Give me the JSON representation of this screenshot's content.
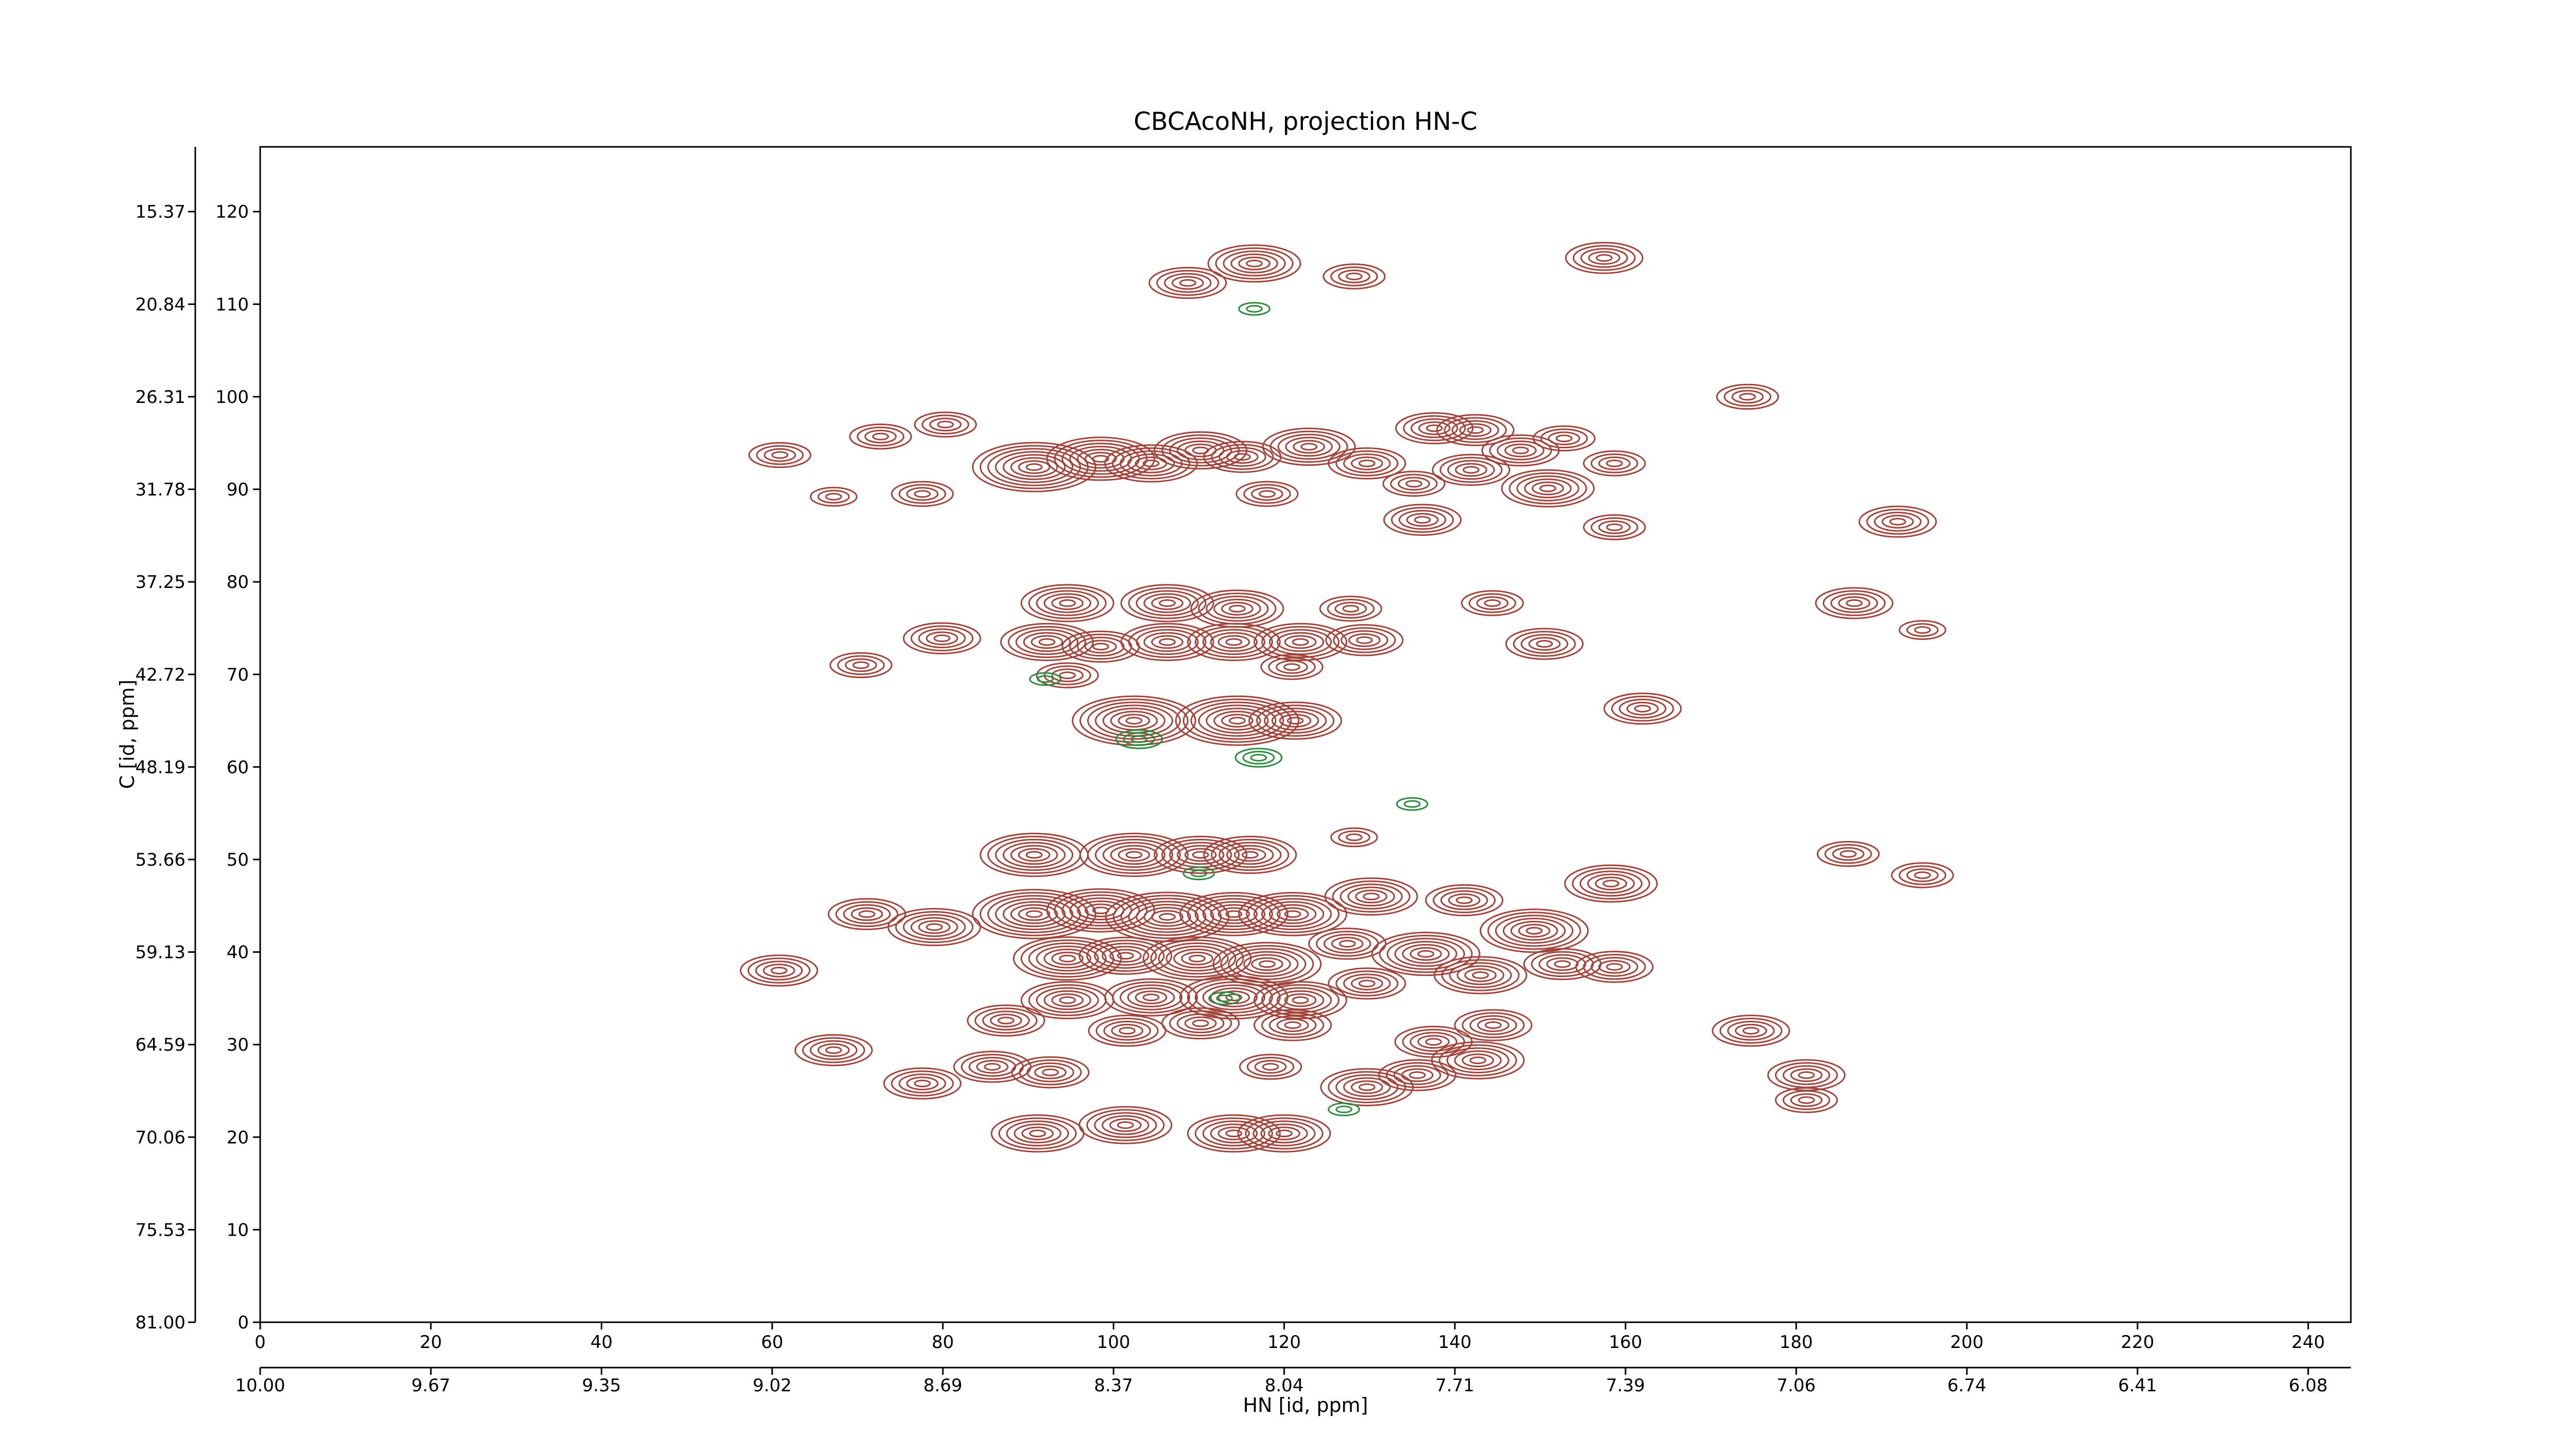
{
  "chart_data": {
    "type": "contour",
    "title": "CBCAcoNH, projection HN-C",
    "xlabel": "HN [id, ppm]",
    "ylabel": "C [id, ppm]",
    "xlim": [
      0,
      245
    ],
    "ylim": [
      0,
      127
    ],
    "xticks": [
      0,
      20,
      40,
      60,
      80,
      100,
      120,
      140,
      160,
      180,
      200,
      220,
      240
    ],
    "yticks": [
      0,
      10,
      20,
      30,
      40,
      50,
      60,
      70,
      80,
      90,
      100,
      110,
      120
    ],
    "x2ticks": [
      {
        "value": 0,
        "label": "10.00"
      },
      {
        "value": 20,
        "label": "9.67"
      },
      {
        "value": 40,
        "label": "9.35"
      },
      {
        "value": 60,
        "label": "9.02"
      },
      {
        "value": 80,
        "label": "8.69"
      },
      {
        "value": 100,
        "label": "8.37"
      },
      {
        "value": 120,
        "label": "8.04"
      },
      {
        "value": 140,
        "label": "7.71"
      },
      {
        "value": 160,
        "label": "7.39"
      },
      {
        "value": 180,
        "label": "7.06"
      },
      {
        "value": 200,
        "label": "6.74"
      },
      {
        "value": 220,
        "label": "6.41"
      },
      {
        "value": 240,
        "label": "6.08"
      }
    ],
    "y2ticks": [
      {
        "value": 0,
        "label": "81.00"
      },
      {
        "value": 10,
        "label": "75.53"
      },
      {
        "value": 20,
        "label": "70.06"
      },
      {
        "value": 30,
        "label": "64.59"
      },
      {
        "value": 40,
        "label": "59.13"
      },
      {
        "value": 50,
        "label": "53.66"
      },
      {
        "value": 60,
        "label": "48.19"
      },
      {
        "value": 70,
        "label": "42.72"
      },
      {
        "value": 80,
        "label": "37.25"
      },
      {
        "value": 90,
        "label": "31.78"
      },
      {
        "value": 100,
        "label": "26.31"
      },
      {
        "value": 110,
        "label": "20.84"
      },
      {
        "value": 120,
        "label": "15.37"
      }
    ],
    "series": [
      {
        "color": "#a0443c",
        "x": [
          108.7,
          116.5,
          128.2,
          157.5,
          174.3,
          80.3,
          72.7,
          60.9,
          67.2,
          77.6,
          90.7,
          98.5,
          104.4,
          110.2,
          115.1,
          122.9,
          118,
          129.7,
          135.2,
          137.6,
          142.4,
          141.9,
          147.7,
          152.8,
          150.9,
          158.7,
          158.7,
          136.2,
          191.9,
          186.8,
          194.8,
          94.6,
          106.3,
          114.5,
          127.8,
          144.4,
          79.9,
          92.2,
          98.5,
          106.3,
          114.1,
          121.9,
          129.4,
          150.5,
          70.4,
          94.6,
          120.9,
          102.4,
          114.5,
          121.3,
          162,
          90.7,
          102.4,
          110.2,
          116,
          128.2,
          71.1,
          79,
          90.7,
          98.5,
          106.3,
          114.1,
          121,
          130.2,
          141.1,
          149.3,
          158.3,
          60.8,
          94.6,
          101.4,
          109.8,
          118,
          127.4,
          136.6,
          143,
          152.6,
          158.7,
          94.6,
          104.4,
          114.1,
          121.9,
          129.7,
          87.4,
          101.6,
          110.2,
          121,
          137.5,
          144.5,
          67.2,
          85.8,
          92.6,
          118.4,
          142.7,
          174.7,
          181.2,
          181.2,
          77.6,
          129.7,
          135.6,
          91.1,
          101.4,
          114.1,
          120,
          186.1,
          194.8
        ],
        "values": [
          112.3,
          114.4,
          113,
          115,
          100,
          97,
          95.7,
          93.7,
          89.2,
          89.5,
          92.4,
          93.3,
          92.8,
          94.2,
          93.5,
          94.6,
          89.5,
          92.8,
          90.6,
          96.6,
          96.4,
          92.1,
          94.2,
          95.5,
          90.1,
          92.8,
          85.9,
          86.7,
          86.5,
          77.7,
          74.8,
          77.7,
          77.7,
          77.1,
          77.1,
          77.7,
          73.9,
          73.5,
          73,
          73.5,
          73.5,
          73.5,
          73.7,
          73.3,
          71,
          69.9,
          70.8,
          65,
          65,
          65,
          66.3,
          50.5,
          50.5,
          50.5,
          50.5,
          52.4,
          44.1,
          42.7,
          44.1,
          44.5,
          43.8,
          44.1,
          44.1,
          46,
          45.6,
          42.3,
          47.4,
          38,
          39.3,
          39.6,
          39.3,
          38.7,
          40.9,
          39.8,
          37.5,
          38.7,
          38.4,
          34.8,
          35.1,
          35.1,
          34.8,
          36.6,
          32.6,
          31.5,
          32.3,
          32.1,
          30.3,
          32.1,
          29.4,
          27.6,
          27,
          27.6,
          28.3,
          31.5,
          26.7,
          24,
          25.8,
          25.4,
          26.7,
          20.4,
          21.3,
          20.4,
          20.4,
          50.6,
          48.3
        ],
        "levels": [
          5,
          6,
          4,
          5,
          4,
          4,
          4,
          4,
          3,
          4,
          8,
          7,
          6,
          6,
          5,
          6,
          4,
          5,
          4,
          5,
          5,
          5,
          5,
          4,
          6,
          4,
          4,
          5,
          5,
          5,
          3,
          6,
          6,
          6,
          4,
          4,
          5,
          6,
          5,
          6,
          6,
          6,
          5,
          5,
          4,
          4,
          4,
          8,
          8,
          6,
          5,
          7,
          7,
          6,
          6,
          3,
          5,
          6,
          8,
          7,
          8,
          7,
          7,
          6,
          5,
          7,
          6,
          5,
          7,
          6,
          7,
          7,
          5,
          7,
          6,
          5,
          5,
          6,
          6,
          7,
          6,
          5,
          5,
          5,
          5,
          5,
          5,
          5,
          5,
          5,
          5,
          4,
          6,
          5,
          5,
          4,
          5,
          6,
          5,
          6,
          6,
          6,
          6,
          4,
          4
        ]
      },
      {
        "color": "#2e8b3e",
        "x": [
          116.5,
          103,
          117,
          92,
          110,
          127,
          113,
          135
        ],
        "values": [
          109.5,
          63,
          61,
          69.5,
          48.5,
          23,
          35,
          56
        ],
        "levels": [
          2,
          3,
          3,
          2,
          2,
          2,
          2,
          2
        ]
      }
    ]
  }
}
